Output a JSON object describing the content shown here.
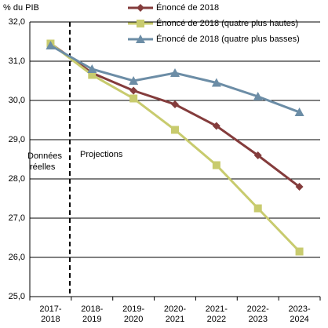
{
  "chart_data": {
    "type": "line",
    "y_label": "% du PIB",
    "categories": [
      [
        "2017-",
        "2018"
      ],
      [
        "2018-",
        "2019"
      ],
      [
        "2019-",
        "2020"
      ],
      [
        "2020-",
        "2021"
      ],
      [
        "2021-",
        "2022"
      ],
      [
        "2022-",
        "2023"
      ],
      [
        "2023-",
        "2024"
      ]
    ],
    "series": [
      {
        "name": "Énoncé de 2018",
        "color": "#843c3c",
        "marker": "diamond",
        "values": [
          31.45,
          30.7,
          30.25,
          29.9,
          29.35,
          28.6,
          27.8
        ]
      },
      {
        "name": "Énoncé de 2018 (quatre plus hautes)",
        "color": "#c8cb6e",
        "marker": "square",
        "values": [
          31.45,
          30.65,
          30.05,
          29.25,
          28.35,
          27.25,
          26.15
        ]
      },
      {
        "name": "Énoncé de 2018 (quatre plus basses)",
        "color": "#6c8da6",
        "marker": "triangle",
        "values": [
          31.4,
          30.8,
          30.5,
          30.7,
          30.45,
          30.1,
          29.7
        ]
      }
    ],
    "ylim": [
      25,
      32
    ],
    "yticks": [
      {
        "value": 25,
        "label": "25,0"
      },
      {
        "value": 26,
        "label": "26,0"
      },
      {
        "value": 27,
        "label": "27,0"
      },
      {
        "value": 28,
        "label": "28,0"
      },
      {
        "value": 29,
        "label": "29,0"
      },
      {
        "value": 30,
        "label": "30,0"
      },
      {
        "value": 31,
        "label": "31,0"
      },
      {
        "value": 32,
        "label": "32,0"
      }
    ],
    "grid": true,
    "annotations": [
      [
        "Données",
        "réelles"
      ],
      "Projections"
    ]
  }
}
